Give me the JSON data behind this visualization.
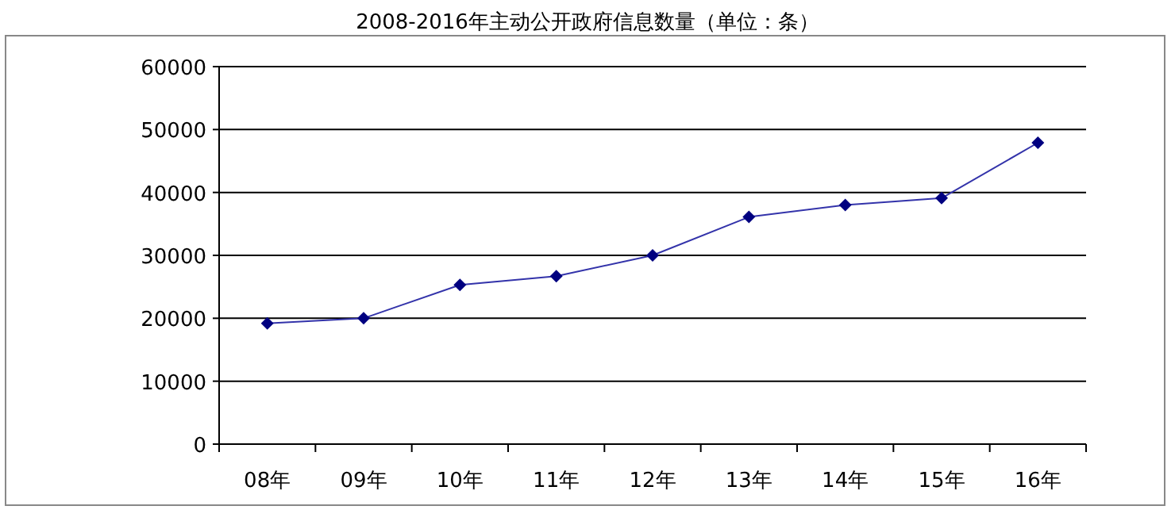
{
  "chart_data": {
    "type": "line",
    "title": "2008-2016年主动公开政府信息数量（单位：条）",
    "categories": [
      "08年",
      "09年",
      "10年",
      "11年",
      "12年",
      "13年",
      "14年",
      "15年",
      "16年"
    ],
    "series": [
      {
        "color": "#000080",
        "values": [
          19200,
          20000,
          25300,
          26700,
          30000,
          36100,
          38000,
          39100,
          47900
        ]
      }
    ],
    "ylim": [
      0,
      60000
    ],
    "yticks": [
      0,
      10000,
      20000,
      30000,
      40000,
      50000,
      60000
    ],
    "grid": "y",
    "marker": "diamond"
  }
}
